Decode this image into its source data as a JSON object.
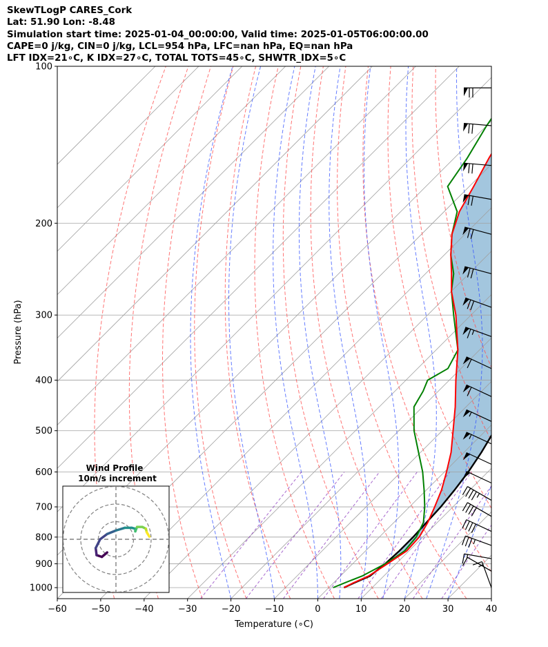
{
  "header": {
    "title": "SkewTLogP CARES_Cork",
    "location": "Lat: 51.90   Lon: -8.48",
    "times": "Simulation start time: 2025-01-04_00:00:00, Valid time: 2025-01-05T06:00:00.00",
    "indices1": "CAPE=0 j/kg, CIN=0 j/kg, LCL=954 hPa, LFC=nan hPa, EQ=nan hPa",
    "indices2": "LFT IDX=21∘C, K IDX=27∘C, TOTAL TOTS=45∘C, SHWTR_IDX=5∘C"
  },
  "chart_data": {
    "type": "skewt",
    "xlabel": "Temperature (∘C)",
    "ylabel": "Pressure (hPa)",
    "xlim": [
      -60,
      40
    ],
    "ylim": [
      1050,
      100
    ],
    "y_scale": "log",
    "skew": "45deg",
    "grid": true,
    "x_ticks": [
      "−60",
      "−50",
      "−40",
      "−30",
      "−20",
      "−10",
      "0",
      "10",
      "20",
      "30",
      "40"
    ],
    "x_tick_values": [
      -60,
      -50,
      -40,
      -30,
      -20,
      -10,
      0,
      10,
      20,
      30,
      40
    ],
    "y_ticks": [
      "100",
      "200",
      "300",
      "400",
      "500",
      "600",
      "700",
      "800",
      "900",
      "1000"
    ],
    "y_tick_values": [
      100,
      200,
      300,
      400,
      500,
      600,
      700,
      800,
      900,
      1000
    ],
    "temperature": {
      "color": "#ff0000",
      "points": [
        [
          1000,
          3.5
        ],
        [
          980,
          4.5
        ],
        [
          950,
          6.5
        ],
        [
          900,
          8
        ],
        [
          850,
          9.5
        ],
        [
          800,
          9.2
        ],
        [
          750,
          7.8
        ],
        [
          700,
          5.8
        ],
        [
          650,
          3.5
        ],
        [
          600,
          0.5
        ],
        [
          550,
          -3
        ],
        [
          500,
          -7.5
        ],
        [
          450,
          -12.5
        ],
        [
          400,
          -18.5
        ],
        [
          350,
          -25
        ],
        [
          300,
          -33.5
        ],
        [
          270,
          -40
        ],
        [
          250,
          -44
        ],
        [
          230,
          -48.5
        ],
        [
          210,
          -53
        ],
        [
          190,
          -56.5
        ],
        [
          170,
          -59
        ],
        [
          150,
          -62
        ],
        [
          130,
          -65
        ],
        [
          115,
          -67.5
        ],
        [
          100,
          -70
        ]
      ]
    },
    "dewpoint": {
      "color": "#008000",
      "points": [
        [
          1000,
          1
        ],
        [
          980,
          2.5
        ],
        [
          950,
          5
        ],
        [
          900,
          7.5
        ],
        [
          870,
          8.5
        ],
        [
          850,
          9
        ],
        [
          800,
          8.5
        ],
        [
          750,
          6.8
        ],
        [
          700,
          3.5
        ],
        [
          650,
          -0.5
        ],
        [
          600,
          -5
        ],
        [
          550,
          -10.5
        ],
        [
          500,
          -16.5
        ],
        [
          450,
          -22
        ],
        [
          420,
          -23.5
        ],
        [
          400,
          -25
        ],
        [
          380,
          -23
        ],
        [
          350,
          -25
        ],
        [
          300,
          -34
        ],
        [
          270,
          -40
        ],
        [
          250,
          -43.5
        ],
        [
          230,
          -48.5
        ],
        [
          210,
          -53
        ],
        [
          190,
          -57
        ],
        [
          170,
          -65
        ],
        [
          150,
          -67
        ],
        [
          130,
          -70
        ],
        [
          115,
          -72
        ],
        [
          100,
          -74
        ]
      ]
    },
    "parcel": {
      "color": "#000000",
      "points": [
        [
          1000,
          3.5
        ],
        [
          980,
          4.7
        ],
        [
          950,
          6.8
        ],
        [
          900,
          7.5
        ],
        [
          850,
          7.8
        ],
        [
          800,
          7.8
        ],
        [
          750,
          7.5
        ],
        [
          700,
          7.2
        ],
        [
          650,
          6.5
        ],
        [
          600,
          5.5
        ],
        [
          550,
          4
        ],
        [
          500,
          2
        ],
        [
          450,
          -0.5
        ],
        [
          400,
          -3.5
        ],
        [
          350,
          -7.5
        ],
        [
          300,
          -12
        ],
        [
          250,
          -18
        ],
        [
          200,
          -25
        ],
        [
          170,
          -30
        ],
        [
          150,
          -34
        ],
        [
          130,
          -38
        ],
        [
          115,
          -42
        ],
        [
          100,
          -46
        ]
      ]
    },
    "shading": {
      "color": "#a3c6de",
      "between": [
        "temperature",
        "parcel"
      ]
    },
    "dry_adiabats_C": [
      -50,
      -40,
      -30,
      -20,
      -10,
      0,
      10,
      20,
      30,
      40,
      50,
      60,
      70
    ],
    "moist_adiabats_C": [
      -20,
      -10,
      0,
      5,
      10,
      15,
      20,
      25,
      30
    ],
    "mixing_ratio_lines_gkg": [
      0.4,
      1,
      2,
      4,
      7,
      10,
      16,
      24
    ],
    "isotherm_colors": {
      "isotherm": "#a0a0a0",
      "dry_adiabat": "#ff5050",
      "moist_adiabat": "#3050ff",
      "mixing_ratio": "#9040c0"
    },
    "wind_barbs": {
      "color": "#000000",
      "levels_hPa": [
        1000,
        930,
        880,
        830,
        780,
        730,
        680,
        630,
        580,
        530,
        480,
        430,
        380,
        330,
        290,
        250,
        210,
        180,
        155,
        130,
        110
      ],
      "speed_kt": [
        15,
        10,
        15,
        35,
        40,
        40,
        45,
        50,
        50,
        55,
        55,
        60,
        60,
        65,
        70,
        70,
        70,
        70,
        70,
        70,
        70
      ],
      "direction_deg": [
        200,
        240,
        260,
        250,
        245,
        240,
        240,
        245,
        245,
        245,
        245,
        245,
        245,
        250,
        250,
        255,
        255,
        260,
        265,
        265,
        270
      ]
    },
    "hodograph": {
      "title": "Wind Profile",
      "subtitle": "10m/s increment",
      "rings_ms": [
        10,
        20,
        30
      ],
      "path": [
        [
          -5,
          -7.5
        ],
        [
          -8,
          -10
        ],
        [
          -11,
          -9
        ],
        [
          -11.5,
          -5
        ],
        [
          -9,
          0
        ],
        [
          -5,
          3
        ],
        [
          0,
          5
        ],
        [
          5,
          6.5
        ],
        [
          9,
          6.5
        ],
        [
          11,
          6
        ],
        [
          11,
          4.5
        ],
        [
          12,
          7
        ],
        [
          15,
          7
        ],
        [
          17,
          6
        ],
        [
          17.5,
          4
        ],
        [
          19,
          1.5
        ]
      ],
      "colormap": "viridis"
    }
  }
}
